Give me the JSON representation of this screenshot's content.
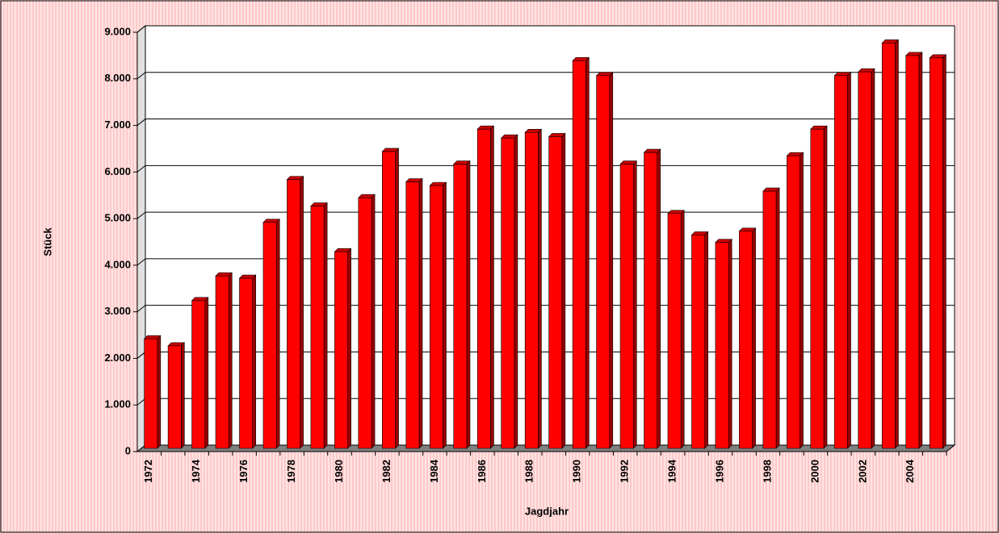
{
  "chart_data": {
    "type": "bar3d",
    "x_label": "Jagdjahr",
    "y_label": "Stück",
    "categories": [
      "1972",
      null,
      "1974",
      null,
      "1976",
      null,
      "1978",
      null,
      "1980",
      null,
      "1982",
      null,
      "1984",
      null,
      "1986",
      null,
      "1988",
      null,
      "1990",
      null,
      "1992",
      null,
      "1994",
      null,
      "1996",
      null,
      "1998",
      null,
      "2000",
      null,
      "2002",
      null,
      "2004",
      null
    ],
    "values": [
      2350,
      2200,
      3170,
      3700,
      3650,
      4850,
      5770,
      5200,
      4220,
      5380,
      6370,
      5720,
      5640,
      6100,
      6850,
      6660,
      6780,
      6690,
      8320,
      8000,
      6100,
      6350,
      5040,
      4580,
      4420,
      4660,
      5520,
      6280,
      6850,
      8000,
      8080,
      8700,
      8430,
      8380
    ],
    "color": "#ff0000",
    "ylim": [
      0,
      9000
    ],
    "yticks": [
      0,
      {
        "value": 1000,
        "label": "1.000"
      },
      {
        "value": 2000,
        "label": "2.000"
      },
      {
        "value": 3000,
        "label": "3.000"
      },
      {
        "value": 4000,
        "label": "4.000"
      },
      {
        "value": 5000,
        "label": "5.000"
      },
      {
        "value": 6000,
        "label": "6.000"
      },
      {
        "value": 7000,
        "label": "7.000"
      },
      {
        "value": 8000,
        "label": "8.000"
      },
      {
        "value": 9000,
        "label": "9.000"
      }
    ],
    "grid": true
  }
}
